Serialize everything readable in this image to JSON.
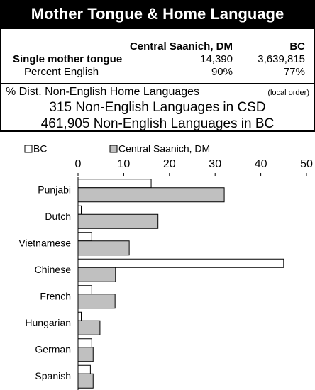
{
  "header": {
    "title": "Mother Tongue & Home Language"
  },
  "table": {
    "columns": [
      "Central Saanich, DM",
      "BC"
    ],
    "rows": [
      [
        "Single mother tongue",
        "14,390",
        "3,639,815"
      ],
      [
        "Percent English",
        "90%",
        "77%"
      ]
    ]
  },
  "chart_data": {
    "type": "bar",
    "orientation": "horizontal",
    "title": "% Dist. Non-English Home Languages",
    "title_note": "(local order)",
    "subtitles": [
      "315 Non-English Languages in CSD",
      "461,905 Non-English Languages in BC"
    ],
    "categories": [
      "Punjabi",
      "Dutch",
      "Vietnamese",
      "Chinese",
      "French",
      "Hungarian",
      "German",
      "Spanish"
    ],
    "series": [
      {
        "name": "BC",
        "color": "#ffffff",
        "values": [
          16,
          0.7,
          3,
          45,
          3,
          0.7,
          3,
          2.7
        ]
      },
      {
        "name": "Central Saanich, DM",
        "color": "#c0c0c0",
        "values": [
          32,
          17.5,
          11.2,
          8.2,
          8.1,
          4.8,
          3.3,
          3.3
        ]
      }
    ],
    "xlim": [
      0,
      50
    ],
    "xticks": [
      0,
      10,
      20,
      30,
      40,
      50
    ],
    "legend": "top"
  }
}
